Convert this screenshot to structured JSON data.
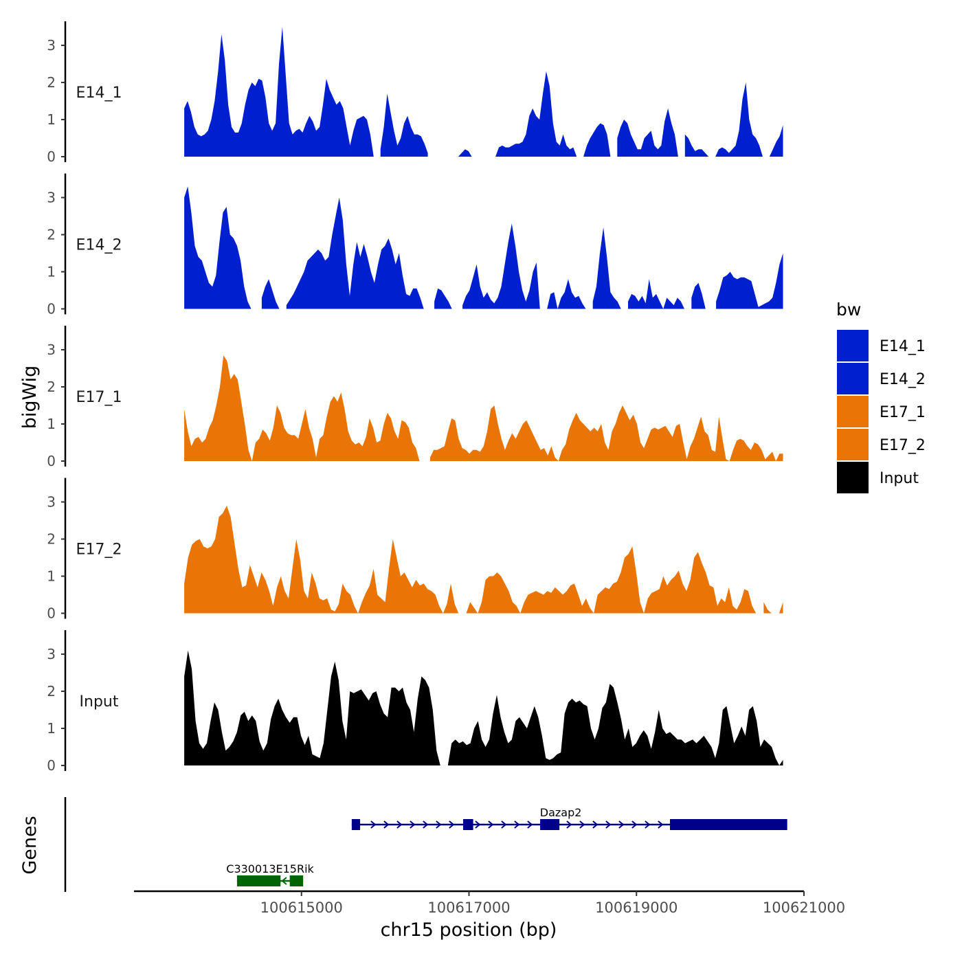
{
  "chart_data": {
    "type": "area",
    "region": "chr15",
    "x_range": [
      100613600,
      100620750
    ],
    "xlim": [
      100613000,
      100621000
    ],
    "xticks": [
      {
        "value": 100615000,
        "label": "100615000"
      },
      {
        "value": 100617000,
        "label": "100617000"
      },
      {
        "value": 100619000,
        "label": "100619000"
      },
      {
        "value": 100621000,
        "label": "100621000"
      }
    ],
    "xlabel": "chr15 position (bp)",
    "ylabel": "bigWig",
    "genes_label": "Genes",
    "ylim": [
      0,
      3.6
    ],
    "yticks": [
      "0",
      "1",
      "2",
      "3"
    ],
    "colors": {
      "E14": "#0020cf",
      "E17": "#e87506",
      "Input": "#000000",
      "gene_blue": "#00008b",
      "gene_green": "#006400"
    },
    "legend": {
      "title": "bw",
      "position": "right",
      "entries": [
        {
          "label": "E14_1",
          "color": "#0020cf"
        },
        {
          "label": "E14_2",
          "color": "#0020cf"
        },
        {
          "label": "E17_1",
          "color": "#e87506"
        },
        {
          "label": "E17_2",
          "color": "#e87506"
        },
        {
          "label": "Input",
          "color": "#000000"
        }
      ]
    },
    "series": [
      {
        "name": "E14_1",
        "color": "#0020cf",
        "values": [
          1.3,
          1.5,
          1.2,
          0.8,
          0.6,
          0.55,
          0.6,
          0.7,
          1.0,
          1.5,
          2.3,
          3.3,
          2.6,
          1.4,
          0.8,
          0.65,
          0.65,
          0.9,
          1.4,
          1.8,
          2.0,
          1.9,
          2.1,
          2.05,
          1.6,
          0.9,
          0.7,
          0.9,
          2.5,
          3.5,
          2.2,
          0.9,
          0.6,
          0.7,
          0.75,
          0.65,
          0.9,
          1.1,
          0.95,
          0.7,
          0.8,
          1.4,
          2.1,
          1.8,
          1.6,
          1.4,
          1.5,
          1.3,
          0.8,
          0.3,
          0.7,
          1.0,
          1.05,
          1.1,
          1.0,
          0.6,
          0.0,
          null,
          0.2,
          0.8,
          1.7,
          1.2,
          0.7,
          0.3,
          0.5,
          0.9,
          1.1,
          0.8,
          0.6,
          0.6,
          0.55,
          0.35,
          0.1,
          null,
          null,
          null,
          null,
          null,
          null,
          null,
          null,
          0.0,
          0.1,
          0.2,
          0.15,
          0.0,
          null,
          null,
          null,
          null,
          null,
          null,
          0.0,
          0.25,
          0.3,
          0.25,
          0.25,
          0.3,
          0.35,
          0.35,
          0.4,
          0.6,
          1.1,
          1.3,
          1.1,
          1.0,
          1.7,
          2.3,
          1.9,
          0.9,
          0.4,
          0.3,
          0.6,
          0.3,
          0.2,
          0.25,
          0.0,
          null,
          0.0,
          0.3,
          0.5,
          0.65,
          0.8,
          0.9,
          0.85,
          0.6,
          0.0,
          null,
          0.5,
          0.8,
          1.0,
          0.9,
          0.6,
          0.4,
          0.2,
          0.2,
          0.5,
          0.6,
          0.7,
          0.3,
          0.2,
          0.3,
          0.95,
          1.3,
          0.9,
          0.6,
          0.0,
          null,
          0.6,
          0.5,
          0.3,
          0.15,
          0.2,
          0.2,
          0.1,
          0.0,
          null,
          0.0,
          0.2,
          0.25,
          0.2,
          0.1,
          0.2,
          0.3,
          0.7,
          1.55,
          2.0,
          1.0,
          0.6,
          0.5,
          0.3,
          0.0,
          null,
          0.0,
          0.2,
          0.4,
          0.55,
          0.85
        ]
      },
      {
        "name": "E14_2",
        "color": "#0020cf",
        "values": [
          3.0,
          3.3,
          2.6,
          1.7,
          1.4,
          1.3,
          1.0,
          0.7,
          0.6,
          0.9,
          1.8,
          2.6,
          2.75,
          2.0,
          1.9,
          1.7,
          1.3,
          0.6,
          0.2,
          0.0,
          null,
          null,
          0.3,
          0.6,
          0.8,
          0.5,
          0.2,
          0.0,
          null,
          0.1,
          0.25,
          0.4,
          0.6,
          0.8,
          1.0,
          1.3,
          1.4,
          1.5,
          1.6,
          1.5,
          1.3,
          1.4,
          2.0,
          2.5,
          3.0,
          2.4,
          1.2,
          0.35,
          1.2,
          1.8,
          1.4,
          1.75,
          1.4,
          1.0,
          0.7,
          1.2,
          1.6,
          1.7,
          1.9,
          1.6,
          1.2,
          1.5,
          0.9,
          0.4,
          0.35,
          0.55,
          0.55,
          0.3,
          0.0,
          null,
          null,
          0.2,
          0.55,
          0.5,
          0.35,
          0.2,
          0.0,
          null,
          null,
          0.1,
          0.35,
          0.5,
          0.85,
          1.2,
          0.6,
          0.3,
          0.45,
          0.25,
          0.15,
          0.3,
          0.6,
          1.2,
          1.8,
          2.3,
          1.7,
          1.0,
          0.5,
          0.2,
          0.5,
          1.0,
          1.25,
          0.0,
          null,
          0.0,
          0.4,
          0.45,
          0.0,
          0.3,
          0.45,
          0.8,
          0.45,
          0.3,
          0.35,
          0.15,
          0.0,
          null,
          0.2,
          0.6,
          1.5,
          2.2,
          1.4,
          0.45,
          0.3,
          0.2,
          0.0,
          null,
          0.2,
          0.4,
          0.35,
          0.2,
          0.35,
          0.15,
          0.8,
          0.3,
          0.4,
          0.2,
          0.0,
          0.3,
          0.2,
          0.1,
          0.3,
          0.2,
          0.0,
          null,
          0.3,
          0.6,
          0.7,
          0.4,
          0.0,
          null,
          null,
          0.2,
          0.5,
          0.85,
          0.9,
          1.0,
          0.85,
          0.8,
          0.85,
          0.85,
          0.8,
          0.75,
          0.4,
          0.05,
          0.1,
          0.15,
          0.2,
          0.3,
          0.7,
          1.2,
          1.5
        ]
      },
      {
        "name": "E17_1",
        "color": "#e87506",
        "values": [
          1.4,
          0.8,
          0.4,
          0.6,
          0.65,
          0.5,
          0.6,
          0.9,
          1.1,
          1.5,
          2.0,
          2.85,
          2.7,
          2.2,
          2.35,
          2.2,
          1.6,
          1.0,
          0.3,
          0.0,
          0.5,
          0.6,
          0.85,
          0.75,
          0.55,
          0.9,
          1.5,
          1.3,
          0.9,
          0.75,
          0.7,
          0.7,
          0.6,
          1.0,
          1.4,
          0.9,
          0.6,
          0.1,
          0.6,
          0.7,
          1.2,
          1.6,
          1.75,
          1.6,
          1.85,
          1.4,
          0.8,
          0.55,
          0.45,
          0.5,
          0.4,
          0.65,
          1.15,
          0.9,
          0.5,
          0.55,
          1.0,
          1.3,
          1.15,
          0.8,
          0.6,
          1.1,
          1.05,
          0.9,
          0.5,
          0.35,
          0.0,
          null,
          null,
          0.1,
          0.3,
          0.3,
          0.35,
          0.4,
          0.8,
          1.15,
          1.1,
          0.6,
          0.35,
          0.3,
          0.2,
          0.3,
          0.3,
          0.25,
          0.4,
          0.8,
          1.4,
          1.5,
          1.0,
          0.6,
          0.3,
          0.55,
          0.75,
          0.6,
          0.8,
          1.0,
          1.1,
          0.9,
          0.7,
          0.5,
          0.3,
          0.35,
          0.15,
          0.4,
          0.1,
          0.0,
          0.3,
          0.45,
          0.85,
          1.1,
          1.3,
          1.1,
          1.0,
          0.9,
          0.8,
          0.9,
          0.8,
          1.0,
          0.5,
          0.3,
          0.8,
          1.0,
          1.3,
          1.5,
          1.3,
          1.1,
          1.25,
          1.0,
          0.5,
          0.35,
          0.6,
          0.85,
          0.9,
          0.85,
          0.9,
          0.95,
          0.8,
          0.65,
          0.95,
          1.0,
          0.5,
          0.05,
          0.4,
          0.6,
          0.9,
          1.2,
          0.8,
          0.7,
          0.3,
          0.25,
          1.2,
          0.6,
          0.05,
          0.0,
          0.3,
          0.55,
          0.6,
          0.55,
          0.4,
          0.3,
          0.5,
          0.45,
          0.3,
          0.05,
          0.15,
          0.25,
          0.0,
          0.2,
          0.2
        ]
      },
      {
        "name": "E17_2",
        "color": "#e87506",
        "values": [
          0.8,
          1.5,
          1.85,
          1.95,
          2.0,
          1.8,
          1.75,
          1.8,
          2.0,
          2.6,
          2.7,
          2.9,
          2.6,
          1.9,
          1.2,
          0.7,
          0.75,
          1.3,
          1.0,
          0.7,
          1.1,
          0.9,
          0.6,
          0.2,
          0.7,
          1.0,
          0.6,
          0.4,
          1.2,
          2.0,
          1.45,
          0.6,
          0.4,
          1.1,
          0.8,
          0.4,
          0.35,
          0.4,
          0.1,
          0.05,
          0.25,
          0.8,
          0.6,
          0.5,
          0.2,
          0.0,
          0.3,
          0.55,
          0.75,
          1.2,
          0.5,
          0.4,
          0.3,
          1.2,
          2.0,
          1.5,
          1.0,
          1.1,
          0.9,
          0.7,
          0.9,
          0.75,
          0.8,
          0.65,
          0.6,
          0.5,
          0.2,
          0.0,
          0.25,
          0.8,
          0.25,
          0.0,
          null,
          0.0,
          0.3,
          0.15,
          0.0,
          0.3,
          0.9,
          1.0,
          1.0,
          1.1,
          1.0,
          0.8,
          0.6,
          0.3,
          0.2,
          0.0,
          0.3,
          0.5,
          0.55,
          0.6,
          0.55,
          0.5,
          0.6,
          0.55,
          0.7,
          0.6,
          0.5,
          0.6,
          0.75,
          0.8,
          0.5,
          0.2,
          0.4,
          0.15,
          0.0,
          0.5,
          0.6,
          0.7,
          0.65,
          0.8,
          0.85,
          1.1,
          1.5,
          1.6,
          1.8,
          1.1,
          0.3,
          0.0,
          0.4,
          0.55,
          0.6,
          0.65,
          1.0,
          0.75,
          0.9,
          1.0,
          1.15,
          0.8,
          0.6,
          0.9,
          1.5,
          1.65,
          1.35,
          1.1,
          0.75,
          0.7,
          0.2,
          0.4,
          0.3,
          0.7,
          0.2,
          0.1,
          0.3,
          0.65,
          0.6,
          0.2,
          0.0,
          null,
          0.3,
          0.1,
          0.0,
          null,
          0.0,
          0.3
        ]
      },
      {
        "name": "Input",
        "color": "#000000",
        "values": [
          2.4,
          3.1,
          2.6,
          1.2,
          0.6,
          0.45,
          0.6,
          1.2,
          1.7,
          1.5,
          0.9,
          0.4,
          0.5,
          0.65,
          0.9,
          1.35,
          1.45,
          1.2,
          1.35,
          1.2,
          0.65,
          0.4,
          0.6,
          1.25,
          1.6,
          1.8,
          1.5,
          1.3,
          1.15,
          1.3,
          1.3,
          0.8,
          0.55,
          0.8,
          0.3,
          0.25,
          0.2,
          0.6,
          1.5,
          2.4,
          2.8,
          2.3,
          1.2,
          0.7,
          2.0,
          1.95,
          2.0,
          2.05,
          1.9,
          1.75,
          1.95,
          2.0,
          1.65,
          1.4,
          1.3,
          2.1,
          2.1,
          2.0,
          2.1,
          1.7,
          1.5,
          0.9,
          1.8,
          2.4,
          2.3,
          2.1,
          1.5,
          0.4,
          0.0,
          null,
          0.0,
          0.6,
          0.7,
          0.6,
          0.65,
          0.55,
          0.6,
          1.0,
          1.2,
          0.7,
          0.5,
          0.7,
          1.4,
          1.9,
          1.3,
          0.9,
          0.6,
          0.7,
          1.2,
          1.3,
          1.15,
          1.0,
          1.3,
          1.6,
          1.3,
          0.8,
          0.2,
          0.15,
          0.2,
          0.3,
          0.35,
          1.4,
          1.7,
          1.8,
          1.7,
          1.75,
          1.65,
          1.6,
          1.0,
          0.7,
          1.0,
          1.55,
          1.7,
          2.2,
          2.1,
          1.7,
          1.25,
          0.7,
          1.0,
          0.5,
          0.6,
          0.8,
          0.95,
          0.8,
          0.45,
          0.9,
          1.5,
          1.0,
          0.85,
          0.9,
          0.8,
          0.7,
          0.7,
          0.6,
          0.65,
          0.7,
          0.6,
          0.7,
          0.8,
          0.65,
          0.5,
          0.2,
          0.6,
          1.5,
          1.6,
          1.1,
          0.6,
          0.8,
          1.05,
          0.8,
          1.5,
          1.6,
          1.2,
          0.5,
          0.7,
          0.6,
          0.5,
          0.2,
          0.0,
          0.15
        ]
      }
    ],
    "genes": [
      {
        "name": "Dazap2",
        "strand": "+",
        "start": 100615600,
        "end": 100620800,
        "color": "#00008b",
        "row": 1,
        "exons": [
          [
            100615600,
            100615700
          ],
          [
            100616930,
            100617050
          ],
          [
            100617850,
            100618080
          ],
          [
            100619400,
            100620800
          ]
        ]
      },
      {
        "name": "C330013E15Rik",
        "strand": "-",
        "start": 100614230,
        "end": 100615020,
        "color": "#006400",
        "row": 2,
        "exons": [
          [
            100614230,
            100614750
          ],
          [
            100614860,
            100615020
          ]
        ]
      }
    ]
  }
}
